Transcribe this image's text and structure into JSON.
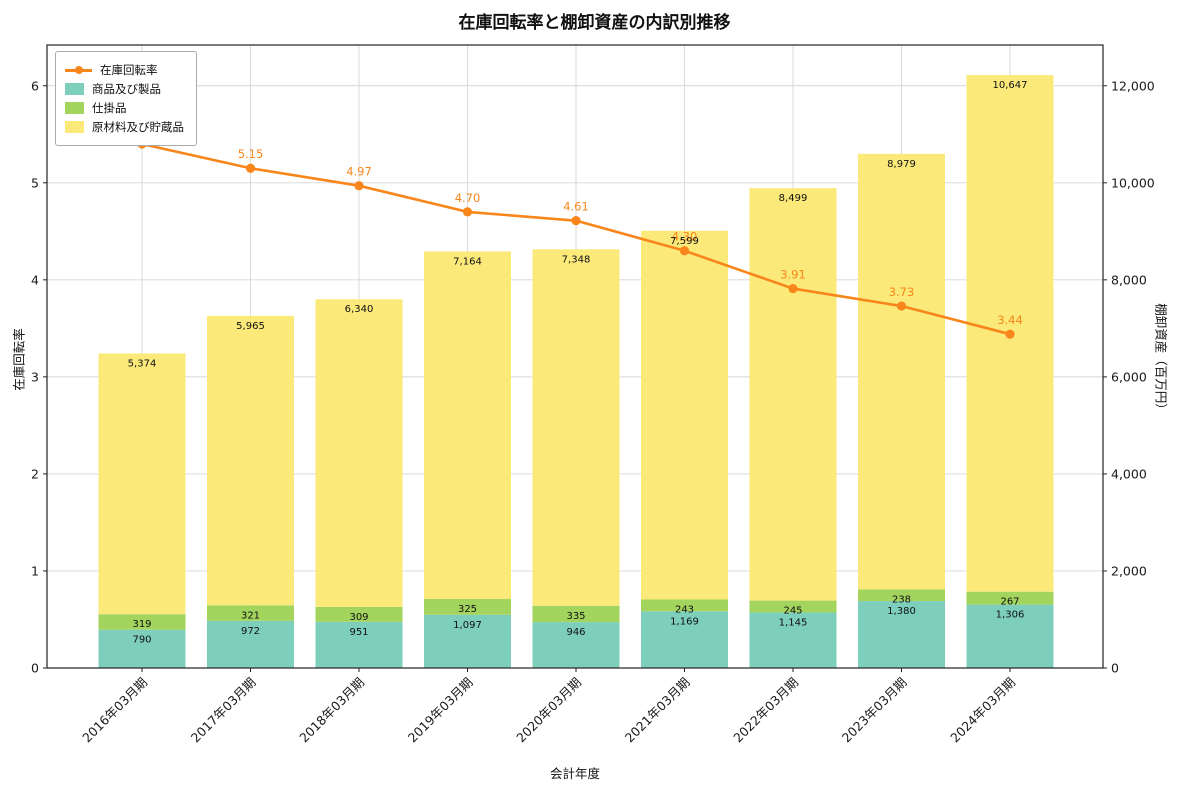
{
  "title": "在庫回転率と棚卸資産の内訳別推移",
  "chart_data": {
    "type": "bar",
    "subtype": "stacked-bar-with-line",
    "categories": [
      "2016年03月期",
      "2017年03月期",
      "2018年03月期",
      "2019年03月期",
      "2020年03月期",
      "2021年03月期",
      "2022年03月期",
      "2023年03月期",
      "2024年03月期"
    ],
    "series": [
      {
        "name": "商品及び製品",
        "type": "bar",
        "color": "#7dcfbc",
        "values": [
          790,
          972,
          951,
          1097,
          946,
          1169,
          1145,
          1380,
          1306
        ]
      },
      {
        "name": "仕掛品",
        "type": "bar",
        "color": "#a2d45e",
        "values": [
          319,
          321,
          309,
          325,
          335,
          243,
          245,
          238,
          267
        ]
      },
      {
        "name": "原材料及び貯蔵品",
        "type": "bar",
        "color": "#fbe97a",
        "values": [
          5374,
          5965,
          6340,
          7164,
          7348,
          7599,
          8499,
          8979,
          10647
        ]
      },
      {
        "name": "在庫回転率",
        "type": "line",
        "color": "#f8861b",
        "values": [
          5.4,
          5.15,
          4.97,
          4.7,
          4.61,
          4.3,
          3.91,
          3.73,
          3.44
        ]
      }
    ],
    "title": "在庫回転率と棚卸資産の内訳別推移",
    "xlabel": "会計年度",
    "ylabel_left": "在庫回転率",
    "ylabel_right": "棚卸資産（百万円）",
    "ylim_left": [
      0,
      6.42
    ],
    "ylim_right": [
      0,
      12840
    ],
    "yticks_left": [
      0,
      1,
      2,
      3,
      4,
      5,
      6
    ],
    "yticks_right": [
      0,
      2000,
      4000,
      6000,
      8000,
      10000,
      12000
    ],
    "grid": true,
    "grid_color": "#d6d6d6",
    "frame_color": "#222222",
    "legend_position": "upper left"
  }
}
